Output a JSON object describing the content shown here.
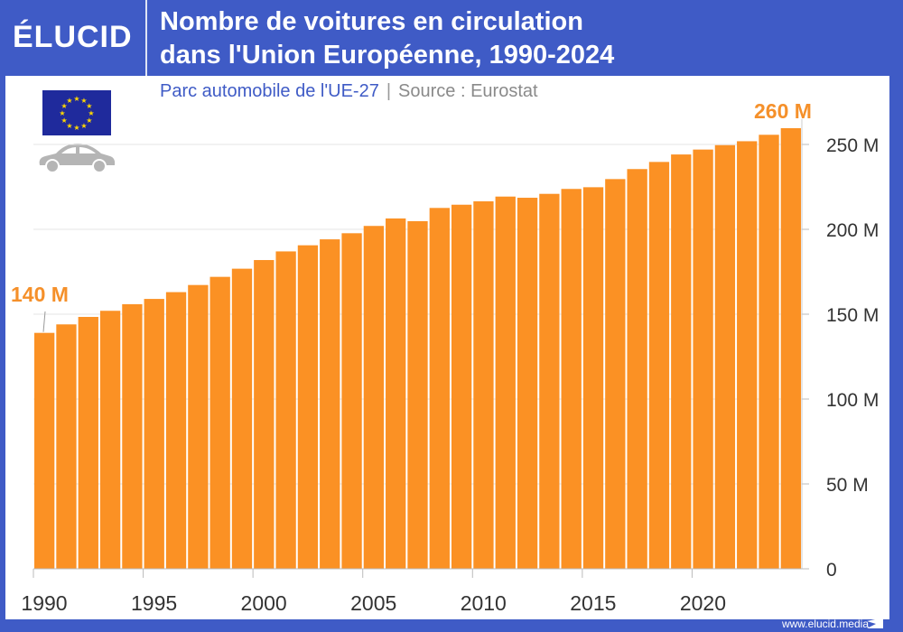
{
  "header": {
    "logo": "ÉLUCID",
    "title_line1": "Nombre de voitures en circulation",
    "title_line2": "dans l'Union Européenne, 1990-2024",
    "subtitle": "Parc automobile de l'UE-27",
    "separator": "|",
    "source": "Source : Eurostat"
  },
  "footer": {
    "url": "www.elucid.media"
  },
  "colors": {
    "brand": "#3f5bc6",
    "bar": "#fb9124",
    "annotation": "#f5902a"
  },
  "icons": [
    "eu-flag-icon",
    "car-icon"
  ],
  "chart_data": {
    "type": "bar",
    "title": "Nombre de voitures en circulation dans l'Union Européenne, 1990-2024",
    "xlabel": "",
    "ylabel": "",
    "ylim": [
      0,
      265
    ],
    "y_unit": "millions",
    "grid": true,
    "y_axis_side": "right",
    "y_ticks": [
      0,
      50,
      100,
      150,
      200,
      250
    ],
    "y_tick_labels": [
      "0",
      "50 M",
      "100 M",
      "150 M",
      "200 M",
      "250 M"
    ],
    "x_tick_labels": [
      "1990",
      "1995",
      "2000",
      "2005",
      "2010",
      "2015",
      "2020"
    ],
    "categories": [
      1990,
      1991,
      1992,
      1993,
      1994,
      1995,
      1996,
      1997,
      1998,
      1999,
      2000,
      2001,
      2002,
      2003,
      2004,
      2005,
      2006,
      2007,
      2008,
      2009,
      2010,
      2011,
      2012,
      2013,
      2014,
      2015,
      2016,
      2017,
      2018,
      2019,
      2020,
      2021,
      2022,
      2023,
      2024
    ],
    "values": [
      139,
      144,
      148.4,
      152,
      155.9,
      159,
      163,
      167.2,
      172,
      176.8,
      181.9,
      187,
      190.6,
      194.1,
      197.7,
      202,
      206.4,
      204.8,
      212.6,
      214.5,
      216.5,
      219.3,
      218.6,
      220.9,
      223.8,
      224.8,
      229.6,
      235.5,
      239.7,
      244.1,
      247,
      249.6,
      251.9,
      255.7,
      259.6
    ],
    "annotations": [
      {
        "year": 1990,
        "label": "140 M"
      },
      {
        "year": 2024,
        "label": "260 M"
      }
    ]
  }
}
